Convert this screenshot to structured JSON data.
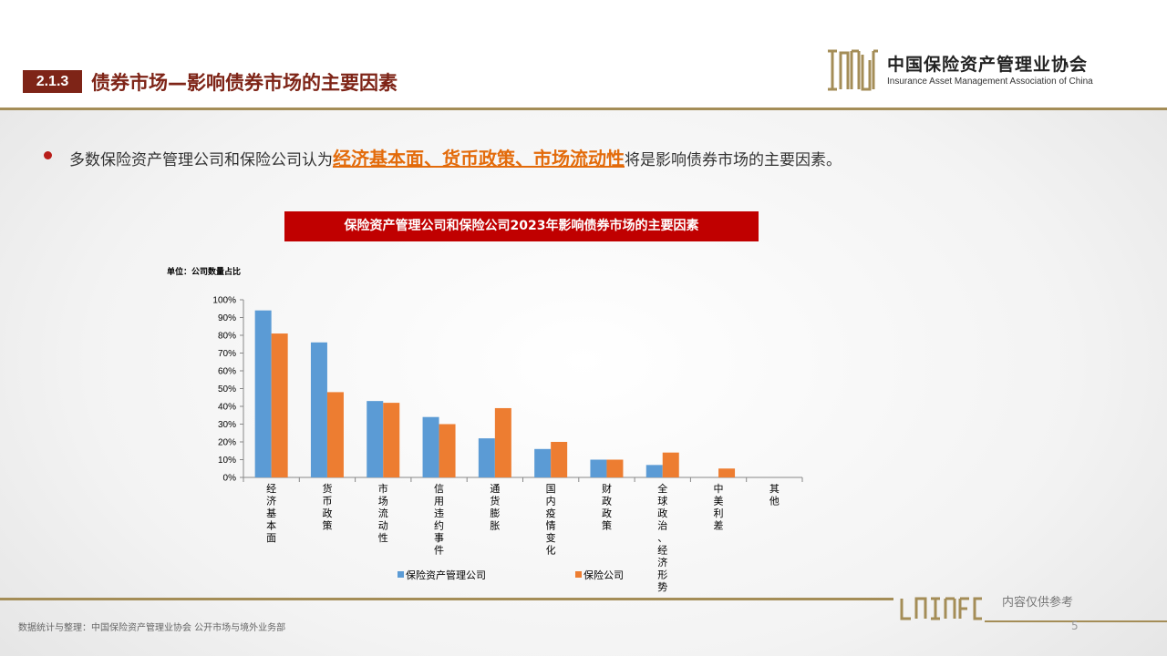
{
  "header": {
    "section_number": "2.1.3",
    "title": "债券市场—影响债券市场的主要因素",
    "logo_cn": "中国保险资产管理业协会",
    "logo_en": "Insurance Asset Management Association of China"
  },
  "bullet": {
    "prefix": "多数保险资产管理公司和保险公司认为",
    "highlight": "经济基本面、货币政策、市场流动性",
    "suffix": "将是影响债券市场的主要因素。"
  },
  "colors": {
    "series1": "#5b9bd5",
    "series2": "#ed7d31",
    "accent": "#c00000",
    "brand": "#7e2417",
    "gold": "#a48d57"
  },
  "chart_data": {
    "type": "bar",
    "title": "保险资产管理公司和保险公司2023年影响债券市场的主要因素",
    "unit_label": "单位：公司数量占比",
    "categories": [
      "经济基本面",
      "货币政策",
      "市场流动性",
      "信用违约事件",
      "通货膨胀",
      "国内疫情变化",
      "财政政策",
      "全球政治、经济形势",
      "中美利差",
      "其他"
    ],
    "series": [
      {
        "name": "保险资产管理公司",
        "values": [
          94,
          76,
          43,
          34,
          22,
          16,
          10,
          7,
          0,
          0
        ]
      },
      {
        "name": "保险公司",
        "values": [
          81,
          48,
          42,
          30,
          39,
          20,
          10,
          14,
          5,
          0
        ]
      }
    ],
    "yticks": [
      "0%",
      "10%",
      "20%",
      "30%",
      "40%",
      "50%",
      "60%",
      "70%",
      "80%",
      "90%",
      "100%"
    ],
    "ylim": [
      0,
      100
    ],
    "legend_position": "bottom"
  },
  "footer": {
    "disclaimer": "内容仅供参考",
    "source": "数据统计与整理：中国保险资产管理业协会 公开市场与境外业务部",
    "page": "5"
  }
}
